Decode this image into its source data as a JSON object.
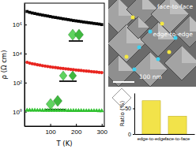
{
  "chart_data": [
    {
      "type": "scatter",
      "xlabel": "T (K)",
      "ylabel": "ρ (Ω cm)",
      "log": "y",
      "x": [
        10,
        20,
        30,
        40,
        50,
        60,
        70,
        80,
        90,
        100,
        110,
        120,
        130,
        140,
        150,
        160,
        170,
        180,
        190,
        200,
        210,
        220,
        230,
        240,
        250,
        260,
        270,
        280,
        290,
        300
      ],
      "series": [
        {
          "color": "#000000",
          "marker": "square",
          "values": [
            8000000,
            7000000,
            6300000,
            5800000,
            5300000,
            4900000,
            4500000,
            4200000,
            3900000,
            3600000,
            3300000,
            3100000,
            2900000,
            2700000,
            2500000,
            2350000,
            2200000,
            2050000,
            1900000,
            1800000,
            1700000,
            1600000,
            1500000,
            1420000,
            1350000,
            1280000,
            1200000,
            1140000,
            1080000,
            1000000
          ]
        },
        {
          "color": "#e8251f",
          "marker": "circle",
          "values": [
            2500,
            2200,
            2000,
            1850,
            1700,
            1580,
            1470,
            1380,
            1300,
            1220,
            1150,
            1090,
            1030,
            980,
            930,
            890,
            850,
            810,
            770,
            740,
            710,
            680,
            650,
            620,
            600,
            575,
            550,
            530,
            510,
            490
          ]
        },
        {
          "color": "#2fc12f",
          "marker": "triangle",
          "values": [
            1.25,
            1.25,
            1.24,
            1.24,
            1.23,
            1.23,
            1.22,
            1.22,
            1.21,
            1.21,
            1.2,
            1.2,
            1.2,
            1.19,
            1.19,
            1.19,
            1.18,
            1.18,
            1.18,
            1.17,
            1.17,
            1.17,
            1.16,
            1.16,
            1.16,
            1.15,
            1.15,
            1.15,
            1.14,
            1.14
          ]
        }
      ],
      "xlim": [
        0,
        310
      ],
      "xticks": [
        100,
        200,
        300
      ],
      "ylim": [
        0.1,
        30000000
      ],
      "yticks": [
        {
          "value": 1,
          "label": "10⁰"
        },
        {
          "value": 100,
          "label": "10²"
        },
        {
          "value": 10000,
          "label": "10⁴"
        },
        {
          "value": 1000000,
          "label": "10⁶"
        }
      ]
    },
    {
      "type": "image",
      "annotations": [
        "face-to-face",
        "edge-to-edge",
        "100 nm"
      ]
    },
    {
      "type": "bar",
      "ylabel": "Ratio (%)",
      "categories": [
        "edge-to-edge",
        "face-to-face"
      ],
      "values": [
        65,
        35
      ],
      "color": "#f2e34a",
      "ylim": [
        0,
        80
      ],
      "yticks": [
        0,
        50
      ]
    }
  ]
}
